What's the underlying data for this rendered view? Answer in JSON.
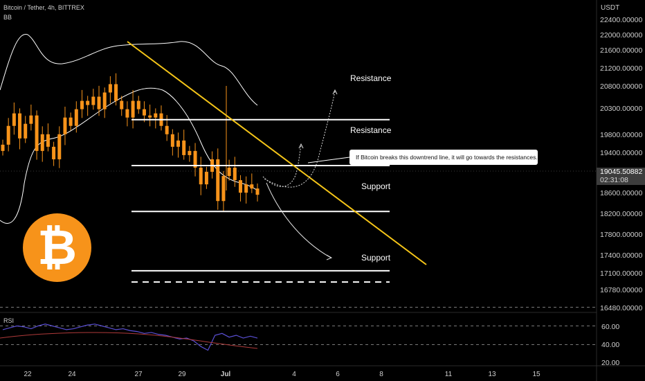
{
  "header": {
    "symbol_line": "Bitcoin / Tether, 4h, BITTREX",
    "indicator": "BB"
  },
  "price_axis": {
    "currency": "USDT",
    "ticks": [
      "22400.00000",
      "22000.00000",
      "21600.00000",
      "21200.00000",
      "20800.00000",
      "20300.00000",
      "19800.00000",
      "19400.00000",
      "18600.00000",
      "18200.00000",
      "17800.00000",
      "17400.00000",
      "17100.00000",
      "16780.00000",
      "16480.00000"
    ],
    "current_price": "19045.50882",
    "countdown": "02:31:08"
  },
  "time_axis": {
    "ticks": [
      "22",
      "24",
      "27",
      "29",
      "Jul",
      "4",
      "6",
      "8",
      "11",
      "13",
      "15"
    ]
  },
  "annotations": {
    "resistance_1": "Resistance",
    "resistance_2": "Resistance",
    "support_1": "Support",
    "support_2": "Support",
    "callout": "If Bitcoin breaks this downtrend line, it will go towards the resistances."
  },
  "rsi": {
    "label": "RSI",
    "ticks": [
      "60.00",
      "40.00",
      "20.00"
    ]
  },
  "colors": {
    "background": "#000000",
    "candle": "#f7931a",
    "trendline": "#f5c518",
    "rsi_line": "#5b50d6",
    "rsi_ma": "#b03a3a",
    "bitcoin_logo": "#f7931a"
  },
  "icons": {
    "logo": "bitcoin-logo-icon"
  },
  "chart_data": {
    "type": "candlestick",
    "ylim": [
      16480,
      22400
    ],
    "levels": {
      "resistance": [
        20850,
        19750
      ],
      "support": [
        18650,
        17230
      ],
      "dashed": 16960
    },
    "close_path": [
      20250,
      20700,
      21000,
      20400,
      20750,
      20950,
      20100,
      20500,
      20200,
      19900,
      20500,
      20900,
      20700,
      21100,
      21300,
      21200,
      21400,
      21100,
      21500,
      21700,
      21300,
      21100,
      20900,
      21300,
      21100,
      20950,
      20900,
      21000,
      20700,
      20500,
      20200,
      20350,
      20000,
      20100,
      19700,
      19300,
      19600,
      19900,
      18900,
      19500,
      19700,
      19400,
      19100,
      19300,
      19200,
      19050
    ],
    "rsi_values": [
      46,
      48,
      50,
      49,
      47,
      50,
      52,
      50,
      48,
      46,
      47,
      49,
      51,
      52,
      50,
      48,
      46,
      47,
      45,
      44,
      42,
      43,
      41,
      40,
      38,
      36,
      37,
      34,
      28,
      24,
      40,
      42,
      38,
      40,
      37,
      39,
      37
    ]
  }
}
